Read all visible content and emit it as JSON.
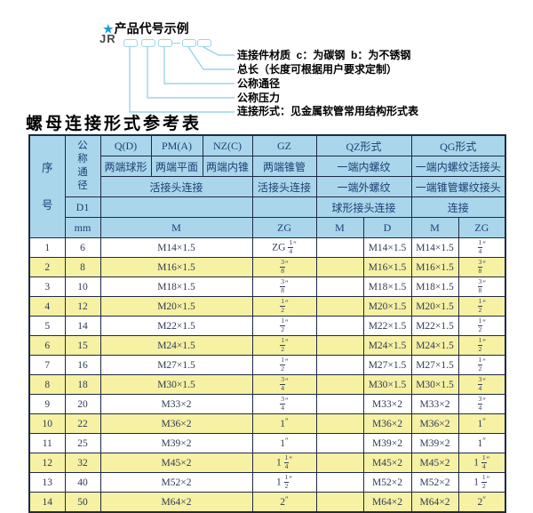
{
  "diagram": {
    "star": "★",
    "title": "产品代号示例",
    "code_prefix": "JR",
    "labels": [
      "连接件材质  c：为碳钢  b：为不锈钢",
      "总长（长度可根据用户要求定制）",
      "公称通径",
      "公称压力",
      "连接形式：见金属软管常用结构形式表"
    ]
  },
  "table_title": "螺母连接形式参考表",
  "table": {
    "header": {
      "seq": "序号",
      "dn": "公称通径",
      "d1": "D1",
      "mm": "mm",
      "q": "Q(D)",
      "q_sub": "两端球形",
      "pm": "PM(A)",
      "pm_sub": "两端平面",
      "nz": "NZ(C)",
      "nz_sub": "两端内锥",
      "gz": "GZ",
      "gz_sub": "两端锥管",
      "gz_conn": "活接头连接",
      "qpn_conn": "活接头连接",
      "qz": "QZ形式",
      "qz_sub1": "一端内螺纹",
      "qz_sub2": "一端外螺纹",
      "qz_conn": "球形接头连接",
      "qg": "QG形式",
      "qg_sub1": "一端内螺纹活接头",
      "qg_sub2": "一端锥管螺纹接头",
      "qg_conn": "连接",
      "m": "M",
      "zg": "ZG",
      "qz_m": "M",
      "qz_d": "D",
      "qg_m": "M",
      "qg_zg": "ZG"
    },
    "rows": [
      {
        "no": "1",
        "dn": "6",
        "m": "M14×1.5",
        "gz_zg": "ZG 1/4\"",
        "qz_m": "",
        "qz_d": "M14×1.5",
        "qg_m": "M14×1.5",
        "qg_zg": "1/4\""
      },
      {
        "no": "2",
        "dn": "8",
        "m": "M16×1.5",
        "gz_zg": "3/8\"",
        "qz_m": "",
        "qz_d": "M16×1.5",
        "qg_m": "M16×1.5",
        "qg_zg": "3/8\""
      },
      {
        "no": "3",
        "dn": "10",
        "m": "M18×1.5",
        "gz_zg": "3/8\"",
        "qz_m": "",
        "qz_d": "M18×1.5",
        "qg_m": "M18×1.5",
        "qg_zg": "3/8\""
      },
      {
        "no": "4",
        "dn": "12",
        "m": "M20×1.5",
        "gz_zg": "1/2\"",
        "qz_m": "",
        "qz_d": "M20×1.5",
        "qg_m": "M20×1.5",
        "qg_zg": "1/2\""
      },
      {
        "no": "5",
        "dn": "14",
        "m": "M22×1.5",
        "gz_zg": "1/2\"",
        "qz_m": "",
        "qz_d": "M22×1.5",
        "qg_m": "M22×1.5",
        "qg_zg": "1/2\""
      },
      {
        "no": "6",
        "dn": "15",
        "m": "M24×1.5",
        "gz_zg": "1/2\"",
        "qz_m": "",
        "qz_d": "M24×1.5",
        "qg_m": "M24×1.5",
        "qg_zg": "1/2\""
      },
      {
        "no": "7",
        "dn": "16",
        "m": "M27×1.5",
        "gz_zg": "1/2\"",
        "qz_m": "",
        "qz_d": "M27×1.5",
        "qg_m": "M27×1.5",
        "qg_zg": "1/2\""
      },
      {
        "no": "8",
        "dn": "18",
        "m": "M30×1.5",
        "gz_zg": "3/4\"",
        "qz_m": "",
        "qz_d": "M30×1.5",
        "qg_m": "M30×1.5",
        "qg_zg": "3/4\""
      },
      {
        "no": "9",
        "dn": "20",
        "m": "M33×2",
        "gz_zg": "3/4\"",
        "qz_m": "",
        "qz_d": "M33×2",
        "qg_m": "M33×2",
        "qg_zg": "3/4\""
      },
      {
        "no": "10",
        "dn": "22",
        "m": "M36×2",
        "gz_zg": "1\"",
        "qz_m": "",
        "qz_d": "M36×2",
        "qg_m": "M36×2",
        "qg_zg": "1\""
      },
      {
        "no": "11",
        "dn": "25",
        "m": "M39×2",
        "gz_zg": "1\"",
        "qz_m": "",
        "qz_d": "M39×2",
        "qg_m": "M39×2",
        "qg_zg": "1\""
      },
      {
        "no": "12",
        "dn": "32",
        "m": "M45×2",
        "gz_zg": "1 1/4\"",
        "qz_m": "",
        "qz_d": "M45×2",
        "qg_m": "M45×2",
        "qg_zg": "1 1/4\""
      },
      {
        "no": "13",
        "dn": "40",
        "m": "M52×2",
        "gz_zg": "1 1/2\"",
        "qz_m": "",
        "qz_d": "M52×2",
        "qg_m": "M52×2",
        "qg_zg": "1 1/2\""
      },
      {
        "no": "14",
        "dn": "50",
        "m": "M64×2",
        "gz_zg": "2\"",
        "qz_m": "",
        "qz_d": "M64×2",
        "qg_m": "M64×2",
        "qg_zg": "2\""
      }
    ]
  },
  "colors": {
    "accent": "#1F9CD8",
    "line": "#9ED3E9",
    "header_bg": "#AAD6EB",
    "row_alt_bg": "#F6F1A3",
    "border": "#1E2A44",
    "header_text": "#1D3F73",
    "data_text": "#2E3A57"
  }
}
